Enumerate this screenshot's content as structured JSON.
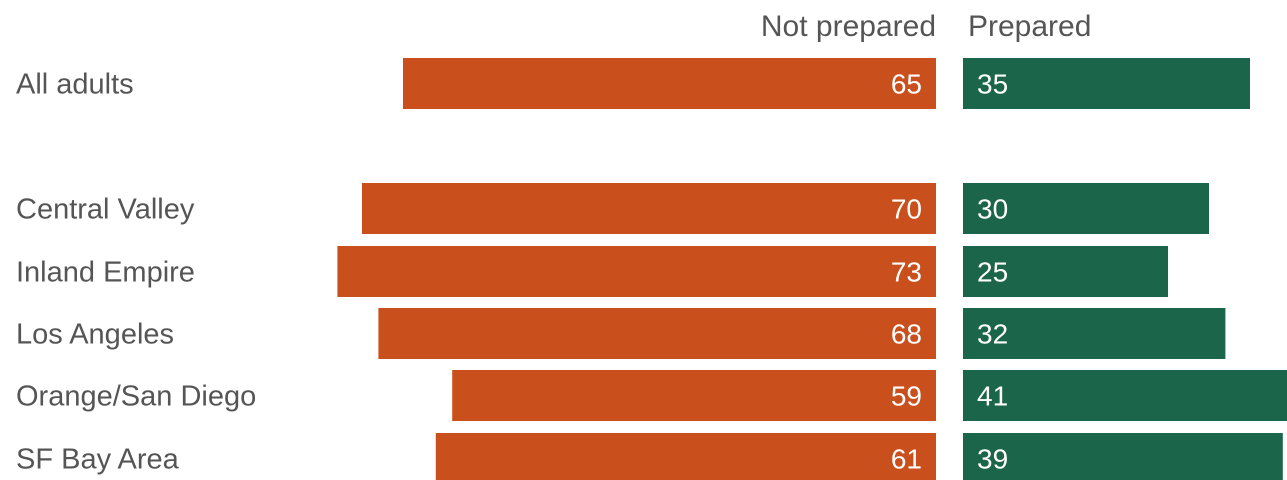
{
  "chart_data": {
    "type": "bar",
    "orientation": "horizontal-diverging",
    "legend": [
      "Not prepared",
      "Prepared"
    ],
    "colors": {
      "Not prepared": "#c9501c",
      "Prepared": "#1b654b"
    },
    "categories": [
      "All adults",
      "Central Valley",
      "Inland Empire",
      "Los Angeles",
      "Orange/San Diego",
      "SF Bay Area"
    ],
    "series": [
      {
        "name": "Not prepared",
        "values": [
          65,
          70,
          73,
          68,
          59,
          61
        ]
      },
      {
        "name": "Prepared",
        "values": [
          35,
          30,
          25,
          32,
          41,
          39
        ]
      }
    ],
    "title": "",
    "xlabel": "",
    "ylabel": "",
    "grid": false,
    "legend_position": "top"
  }
}
